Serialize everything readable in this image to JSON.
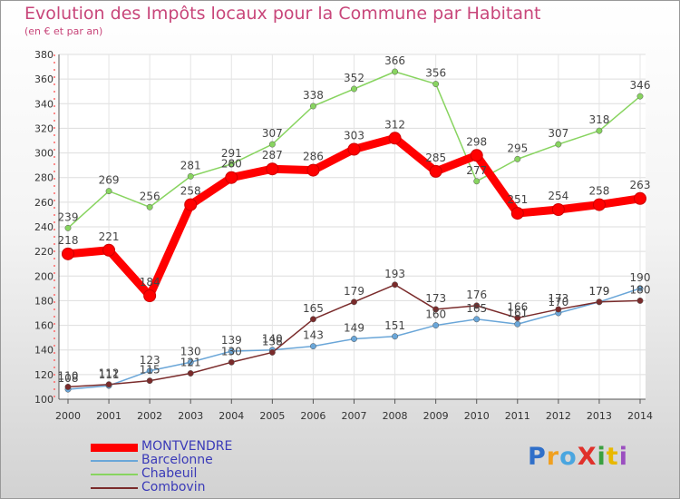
{
  "title": "Evolution des Impôts locaux pour la Commune par Habitant",
  "subtitle": "(en € et par an)",
  "brand": {
    "text": "ProXiti",
    "letter_colors": [
      "#2f6fc9",
      "#f0a020",
      "#4aa6e0",
      "#e0302a",
      "#3aa040",
      "#e8b800",
      "#9b4fc0"
    ]
  },
  "chart_data": {
    "type": "line",
    "title": "Evolution des Impôts locaux pour la Commune par Habitant",
    "subtitle": "(en € et par an)",
    "x": [
      2000,
      2001,
      2002,
      2003,
      2004,
      2005,
      2006,
      2007,
      2008,
      2009,
      2010,
      2011,
      2012,
      2013,
      2014
    ],
    "x_tick_labels": [
      "2000",
      "2001",
      "2002",
      "2003",
      "2004",
      "2005",
      "2006",
      "2007",
      "2008",
      "2009",
      "2010",
      "2011",
      "2012",
      "2013",
      "2014"
    ],
    "ylim": [
      100,
      380
    ],
    "y_ticks": [
      100,
      120,
      140,
      160,
      180,
      200,
      220,
      240,
      260,
      280,
      300,
      320,
      340,
      360,
      380
    ],
    "y_tick_labels": [
      "100",
      "120",
      "140",
      "160",
      "180",
      "200",
      "220",
      "240",
      "260",
      "280",
      "300",
      "320",
      "340",
      "360",
      "380"
    ],
    "grid": true,
    "legend_position": "bottom-left",
    "series": [
      {
        "name": "MONTVENDRE",
        "color": "#ff0000",
        "emphasis": true,
        "values": [
          218,
          221,
          184,
          258,
          280,
          287,
          286,
          303,
          312,
          285,
          298,
          251,
          254,
          258,
          263
        ],
        "labels": [
          "218",
          "221",
          "184",
          "258",
          "280",
          "287",
          "286",
          "303",
          "312",
          "285",
          "298",
          "251",
          "254",
          "258",
          "263"
        ]
      },
      {
        "name": "Barcelonne",
        "color": "#6aa6d8",
        "values": [
          108,
          111,
          123,
          130,
          139,
          140,
          143,
          149,
          151,
          160,
          165,
          161,
          170,
          179,
          190
        ],
        "labels": [
          "108",
          "111",
          "123",
          "130",
          "139",
          "140",
          "143",
          "149",
          "151",
          "160",
          "165",
          "161",
          "170",
          "179",
          "190"
        ]
      },
      {
        "name": "Chabeuil",
        "color": "#88d460",
        "values": [
          239,
          269,
          256,
          281,
          291,
          307,
          338,
          352,
          366,
          356,
          277,
          295,
          307,
          318,
          346
        ],
        "labels": [
          "239",
          "269",
          "256",
          "281",
          "291",
          "307",
          "338",
          "352",
          "366",
          "356",
          "277",
          "295",
          "307",
          "318",
          "346"
        ]
      },
      {
        "name": "Combovin",
        "color": "#7a2b2b",
        "values": [
          110,
          112,
          115,
          121,
          130,
          138,
          165,
          179,
          193,
          173,
          176,
          166,
          173,
          179,
          180
        ],
        "labels": [
          "110",
          "112",
          "115",
          "121",
          "130",
          "138",
          "165",
          "179",
          "193",
          "173",
          "176",
          "166",
          "173",
          "179",
          "180"
        ]
      }
    ]
  }
}
